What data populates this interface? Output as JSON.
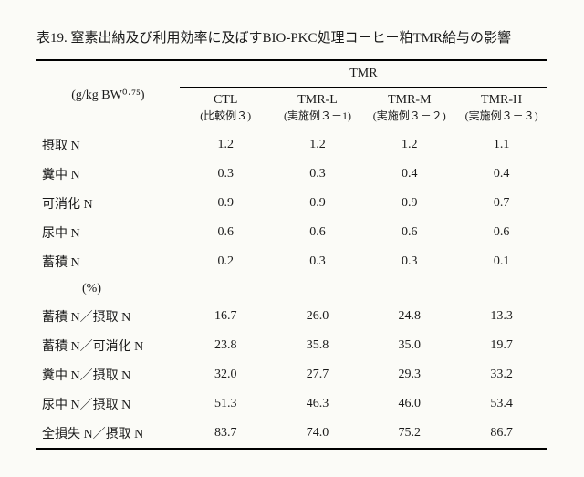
{
  "title": "表19. 窒素出納及び利用効率に及ぼすBIO-PKC処理コーヒー粕TMR給与の影響",
  "super_header": "TMR",
  "unit_label": "(g/kg BW⁰·⁷⁵)",
  "columns": [
    {
      "head": "CTL",
      "sub": "(比較例３)"
    },
    {
      "head": "TMR-L",
      "sub": "(実施例３－1)"
    },
    {
      "head": "TMR-M",
      "sub": "(実施例３－２)"
    },
    {
      "head": "TMR-H",
      "sub": "(実施例３－３)"
    }
  ],
  "section1": [
    {
      "label": "摂取 N",
      "v": [
        "1.2",
        "1.2",
        "1.2",
        "1.1"
      ]
    },
    {
      "label": "糞中 N",
      "v": [
        "0.3",
        "0.3",
        "0.4",
        "0.4"
      ]
    },
    {
      "label": "可消化 N",
      "v": [
        "0.9",
        "0.9",
        "0.9",
        "0.7"
      ]
    },
    {
      "label": "尿中 N",
      "v": [
        "0.6",
        "0.6",
        "0.6",
        "0.6"
      ]
    },
    {
      "label": "蓄積 N",
      "v": [
        "0.2",
        "0.3",
        "0.3",
        "0.1"
      ]
    }
  ],
  "percent_label": "(%)",
  "section2": [
    {
      "label": "蓄積 N／摂取 N",
      "v": [
        "16.7",
        "26.0",
        "24.8",
        "13.3"
      ]
    },
    {
      "label": "蓄積 N／可消化 N",
      "v": [
        "23.8",
        "35.8",
        "35.0",
        "19.7"
      ]
    },
    {
      "label": "糞中 N／摂取 N",
      "v": [
        "32.0",
        "27.7",
        "29.3",
        "33.2"
      ]
    },
    {
      "label": "尿中 N／摂取 N",
      "v": [
        "51.3",
        "46.3",
        "46.0",
        "53.4"
      ]
    },
    {
      "label": "全損失 N／摂取 N",
      "v": [
        "83.7",
        "74.0",
        "75.2",
        "86.7"
      ]
    }
  ]
}
